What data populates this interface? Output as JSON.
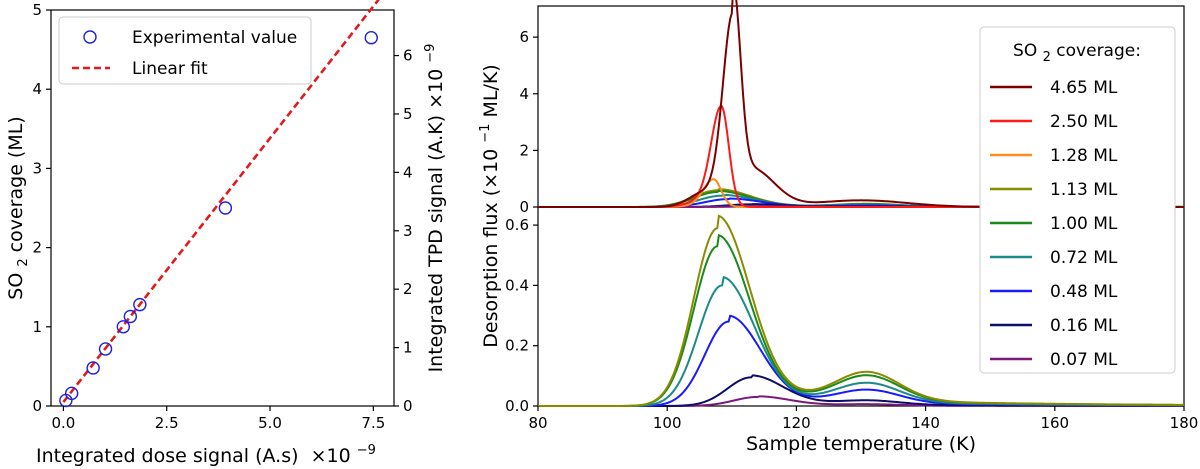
{
  "chart_data": [
    {
      "type": "scatter",
      "xlabel": "Integrated dose signal (A.s)",
      "xlabel_exp": "×10",
      "xlabel_exp_sup": "−9",
      "ylabel_main": "SO",
      "ylabel_sub": "2",
      "ylabel_rest": " coverage (ML)",
      "y2label": "Integrated TPD signal (A.K) ×10",
      "y2label_sup": "−9",
      "xlim": [
        -0.3,
        8.0
      ],
      "ylim": [
        0,
        5
      ],
      "y2lim": [
        0,
        6.78
      ],
      "xticks": [
        0.0,
        2.5,
        5.0,
        7.5
      ],
      "xtick_labels": [
        "0.0",
        "2.5",
        "5.0",
        "7.5"
      ],
      "yticks": [
        0,
        1,
        2,
        3,
        4,
        5
      ],
      "ytick_labels": [
        "0",
        "1",
        "2",
        "3",
        "4",
        "5"
      ],
      "y2ticks": [
        0,
        1,
        2,
        3,
        4,
        5,
        6
      ],
      "y2tick_labels": [
        "0",
        "1",
        "2",
        "3",
        "4",
        "5",
        "6"
      ],
      "legend": {
        "placement": "top-left",
        "entries": [
          "Experimental value",
          "Linear fit"
        ]
      },
      "series": [
        {
          "name": "Experimental value",
          "kind": "scatter",
          "color": "#1f1fe0",
          "x": [
            0.06,
            0.2,
            0.72,
            1.02,
            1.45,
            1.62,
            1.85,
            3.92,
            7.45
          ],
          "y": [
            0.07,
            0.16,
            0.48,
            0.72,
            1.0,
            1.13,
            1.28,
            2.5,
            4.65
          ]
        },
        {
          "name": "Linear fit",
          "kind": "line",
          "color": "#e31a1c",
          "x": [
            0.0,
            8.0
          ],
          "y": [
            0.05,
            5.38
          ]
        }
      ]
    },
    {
      "type": "line",
      "title_legend": "SO",
      "title_legend_sub": "2",
      "title_legend_rest": " coverage:",
      "xlabel": "Sample temperature (K)",
      "ylabel": "Desorption flux (×10",
      "ylabel_sup": "−1",
      "ylabel_rest": " ML/K)",
      "xlim": [
        80,
        180
      ],
      "xticks": [
        80,
        100,
        120,
        140,
        160,
        180
      ],
      "xtick_labels": [
        "80",
        "100",
        "120",
        "140",
        "160",
        "180"
      ],
      "top_ylim": [
        0,
        7.1
      ],
      "top_yticks": [
        0,
        2,
        4,
        6
      ],
      "top_ytick_labels": [
        "0",
        "2",
        "4",
        "6"
      ],
      "bottom_ylim": [
        0,
        0.66
      ],
      "bottom_yticks": [
        0.0,
        0.2,
        0.4,
        0.6
      ],
      "bottom_ytick_labels": [
        "0.0",
        "0.2",
        "0.4",
        "0.6"
      ],
      "legend": {
        "placement": "right"
      },
      "series": [
        {
          "name": "4.65 ML",
          "color": "#7b0000",
          "panel": "top",
          "peak_t": 110.2,
          "peak_v": 6.75,
          "hot_tail": true
        },
        {
          "name": "2.50 ML",
          "color": "#ff1a1a",
          "panel": "top",
          "peak_t": 108.4,
          "peak_v": 3.4,
          "hot_tail": false
        },
        {
          "name": "1.28 ML",
          "color": "#ff8c1a",
          "panel": "top",
          "peak_t": 107.2,
          "peak_v": 0.92,
          "hot_tail": false
        },
        {
          "name": "1.13 ML",
          "color": "#8b8b00",
          "panel": "bottom",
          "peak_t": 107.8,
          "peak_v": 0.59
        },
        {
          "name": "1.00 ML",
          "color": "#1a8a1a",
          "panel": "bottom",
          "peak_t": 107.8,
          "peak_v": 0.53
        },
        {
          "name": "0.72 ML",
          "color": "#1a8a8a",
          "panel": "bottom",
          "peak_t": 108.5,
          "peak_v": 0.4
        },
        {
          "name": "0.48 ML",
          "color": "#1a1aff",
          "panel": "bottom",
          "peak_t": 109.5,
          "peak_v": 0.28
        },
        {
          "name": "0.16 ML",
          "color": "#0d0d6b",
          "panel": "bottom",
          "peak_t": 113.0,
          "peak_v": 0.095
        },
        {
          "name": "0.07 ML",
          "color": "#7b1a7b",
          "panel": "bottom",
          "peak_t": 114.0,
          "peak_v": 0.03
        }
      ]
    }
  ]
}
